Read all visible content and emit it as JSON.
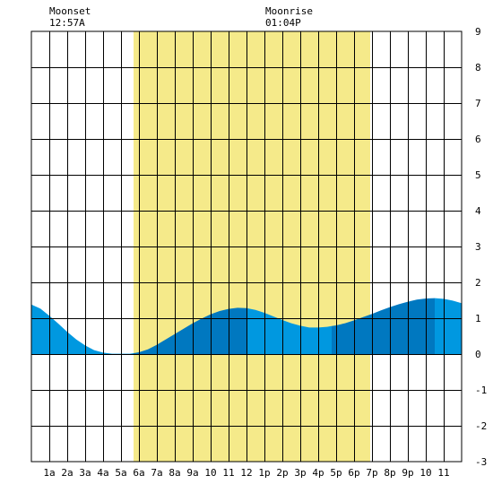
{
  "chart_data": {
    "type": "area",
    "x_unit": "hour of day",
    "x_tick_labels": [
      "1a",
      "2a",
      "3a",
      "4a",
      "5a",
      "6a",
      "7a",
      "8a",
      "9a",
      "10",
      "11",
      "12",
      "1p",
      "2p",
      "3p",
      "4p",
      "5p",
      "6p",
      "7p",
      "8p",
      "9p",
      "10",
      "11"
    ],
    "y_ticks": [
      -3,
      -2,
      -1,
      0,
      1,
      2,
      3,
      4,
      5,
      6,
      7,
      8,
      9
    ],
    "ylim": [
      -3,
      9
    ],
    "xlim": [
      0,
      24
    ],
    "grid": true,
    "daylight": {
      "start": 5.7,
      "end": 18.9
    },
    "tide_series": {
      "x": [
        0,
        0.5,
        1,
        1.5,
        2,
        2.5,
        3,
        3.5,
        4,
        4.5,
        5,
        5.5,
        6,
        6.5,
        7,
        7.5,
        8,
        8.5,
        9,
        9.5,
        10,
        10.5,
        11,
        11.5,
        12,
        12.5,
        13,
        13.5,
        14,
        14.5,
        15,
        15.5,
        16,
        16.5,
        17,
        17.5,
        18,
        18.5,
        19,
        19.5,
        20,
        20.5,
        21,
        21.5,
        22,
        22.5,
        23,
        23.5,
        24
      ],
      "y": [
        1.38,
        1.27,
        1.07,
        0.85,
        0.62,
        0.41,
        0.24,
        0.11,
        0.04,
        0.01,
        0.01,
        0.01,
        0.05,
        0.13,
        0.26,
        0.41,
        0.56,
        0.71,
        0.86,
        0.99,
        1.11,
        1.2,
        1.26,
        1.29,
        1.28,
        1.23,
        1.15,
        1.05,
        0.95,
        0.86,
        0.79,
        0.74,
        0.74,
        0.76,
        0.8,
        0.86,
        0.94,
        1.03,
        1.12,
        1.22,
        1.31,
        1.39,
        1.46,
        1.52,
        1.55,
        1.56,
        1.54,
        1.49,
        1.42
      ]
    },
    "tide_bands": [
      {
        "from": 0,
        "to": 5.7,
        "shade": "light"
      },
      {
        "from": 5.7,
        "to": 12,
        "shade": "dark"
      },
      {
        "from": 12,
        "to": 16.75,
        "shade": "light"
      },
      {
        "from": 16.75,
        "to": 22.5,
        "shade": "dark"
      },
      {
        "from": 22.5,
        "to": 24,
        "shade": "light"
      }
    ],
    "annotations": [
      {
        "label": "Moonset",
        "time": "12:57A",
        "at_hour": 0.95
      },
      {
        "label": "Moonrise",
        "time": "01:04P",
        "at_hour": 13.07
      }
    ],
    "colors": {
      "daylight": "#f5ea8a",
      "tide_light": "#0098e0",
      "tide_dark": "#0078c0",
      "grid": "#000000",
      "plot_bg": "#ffffff"
    }
  }
}
